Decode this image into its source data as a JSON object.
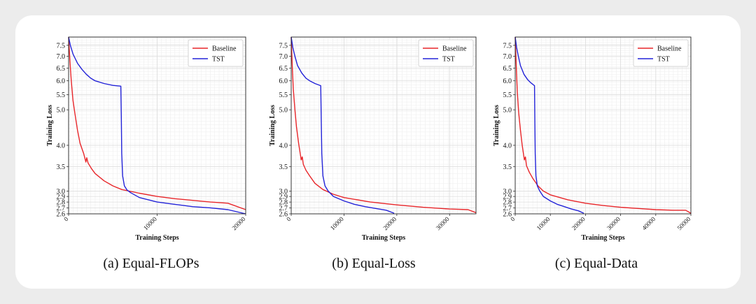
{
  "captions": [
    "(a) Equal-FLOPs",
    "(b) Equal-Loss",
    "(c) Equal-Data"
  ],
  "colors": {
    "baseline": "#e8262a",
    "tst": "#2323d8"
  },
  "chart_data": [
    {
      "type": "line",
      "title": "",
      "xlabel": "Training Steps",
      "ylabel": "Training Loss",
      "xlim": [
        0,
        20000
      ],
      "ylim": [
        2.6,
        7.9
      ],
      "yscale": "log",
      "grid": true,
      "legend": "top-right",
      "xticks": [
        0,
        10000,
        20000
      ],
      "yticks": [
        2.6,
        2.7,
        2.8,
        2.9,
        3.0,
        3.5,
        4.0,
        5.0,
        5.5,
        6.0,
        6.5,
        7.0,
        7.5
      ],
      "series": [
        {
          "name": "Baseline",
          "color": "#e8262a",
          "x": [
            0,
            150,
            300,
            500,
            700,
            1000,
            1300,
            1700,
            1950,
            2050,
            2200,
            2600,
            3000,
            4000,
            5000,
            6000,
            8000,
            10000,
            12000,
            14000,
            16000,
            18000,
            20000
          ],
          "y": [
            7.9,
            6.8,
            6.0,
            5.3,
            4.9,
            4.4,
            4.05,
            3.8,
            3.6,
            3.7,
            3.58,
            3.45,
            3.35,
            3.2,
            3.1,
            3.03,
            2.96,
            2.9,
            2.86,
            2.83,
            2.8,
            2.78,
            2.67
          ]
        },
        {
          "name": "TST",
          "color": "#2323d8",
          "x": [
            0,
            200,
            500,
            1000,
            1500,
            2000,
            2500,
            3000,
            4000,
            5000,
            5900,
            5950,
            6000,
            6100,
            6300,
            6600,
            7000,
            8000,
            10000,
            12000,
            14000,
            16000,
            18000,
            20000
          ],
          "y": [
            7.9,
            7.5,
            7.1,
            6.7,
            6.45,
            6.25,
            6.1,
            6.0,
            5.9,
            5.83,
            5.8,
            4.8,
            3.8,
            3.3,
            3.1,
            3.02,
            2.97,
            2.88,
            2.8,
            2.76,
            2.72,
            2.7,
            2.67,
            2.6
          ]
        }
      ]
    },
    {
      "type": "line",
      "title": "",
      "xlabel": "Training Steps",
      "ylabel": "Training Loss",
      "xlim": [
        0,
        35000
      ],
      "ylim": [
        2.6,
        7.9
      ],
      "yscale": "log",
      "grid": true,
      "legend": "top-right",
      "xticks": [
        0,
        10000,
        20000,
        30000
      ],
      "yticks": [
        2.6,
        2.7,
        2.8,
        2.9,
        3.0,
        3.5,
        4.0,
        5.0,
        5.5,
        6.0,
        6.5,
        7.0,
        7.5
      ],
      "series": [
        {
          "name": "Baseline",
          "color": "#e8262a",
          "x": [
            0,
            200,
            400,
            700,
            1000,
            1400,
            1900,
            2100,
            2300,
            2800,
            3500,
            4500,
            6000,
            8000,
            10000,
            15000,
            20000,
            25000,
            30000,
            33500,
            35000
          ],
          "y": [
            7.9,
            6.6,
            5.7,
            5.0,
            4.5,
            4.05,
            3.65,
            3.72,
            3.55,
            3.42,
            3.3,
            3.15,
            3.03,
            2.94,
            2.88,
            2.8,
            2.75,
            2.71,
            2.68,
            2.67,
            2.62
          ]
        },
        {
          "name": "TST",
          "color": "#2323d8",
          "x": [
            0,
            300,
            700,
            1200,
            2000,
            2800,
            3500,
            4500,
            5600,
            5700,
            5800,
            6000,
            6400,
            7000,
            8000,
            10000,
            12000,
            14000,
            16000,
            18000,
            19500
          ],
          "y": [
            7.9,
            7.4,
            7.0,
            6.6,
            6.3,
            6.1,
            6.0,
            5.9,
            5.82,
            4.6,
            3.8,
            3.3,
            3.1,
            3.0,
            2.9,
            2.82,
            2.76,
            2.72,
            2.69,
            2.66,
            2.61
          ]
        }
      ]
    },
    {
      "type": "line",
      "title": "",
      "xlabel": "Training Steps",
      "ylabel": "Training Loss",
      "xlim": [
        0,
        50000
      ],
      "ylim": [
        2.6,
        7.9
      ],
      "yscale": "log",
      "grid": true,
      "legend": "top-right",
      "xticks": [
        0,
        10000,
        20000,
        30000,
        40000,
        50000
      ],
      "yticks": [
        2.6,
        2.7,
        2.8,
        2.9,
        3.0,
        3.5,
        4.0,
        5.0,
        5.5,
        6.0,
        6.5,
        7.0,
        7.5
      ],
      "series": [
        {
          "name": "Baseline",
          "color": "#e8262a",
          "x": [
            0,
            300,
            600,
            1000,
            1500,
            2000,
            2600,
            2900,
            3200,
            4000,
            5000,
            6500,
            8000,
            10000,
            15000,
            20000,
            25000,
            30000,
            35000,
            40000,
            45000,
            48500,
            50000
          ],
          "y": [
            7.9,
            6.6,
            5.6,
            4.9,
            4.4,
            4.0,
            3.65,
            3.72,
            3.52,
            3.38,
            3.25,
            3.1,
            3.0,
            2.93,
            2.84,
            2.78,
            2.74,
            2.71,
            2.69,
            2.67,
            2.66,
            2.66,
            2.61
          ]
        },
        {
          "name": "TST",
          "color": "#2323d8",
          "x": [
            0,
            400,
            900,
            1500,
            2500,
            3500,
            4500,
            5500,
            5600,
            5700,
            5900,
            6300,
            7000,
            8000,
            10000,
            12000,
            14000,
            16000,
            18000,
            19500
          ],
          "y": [
            7.9,
            7.4,
            7.0,
            6.6,
            6.25,
            6.05,
            5.92,
            5.82,
            4.6,
            3.8,
            3.3,
            3.1,
            3.0,
            2.9,
            2.82,
            2.76,
            2.72,
            2.68,
            2.65,
            2.61
          ]
        }
      ]
    }
  ]
}
